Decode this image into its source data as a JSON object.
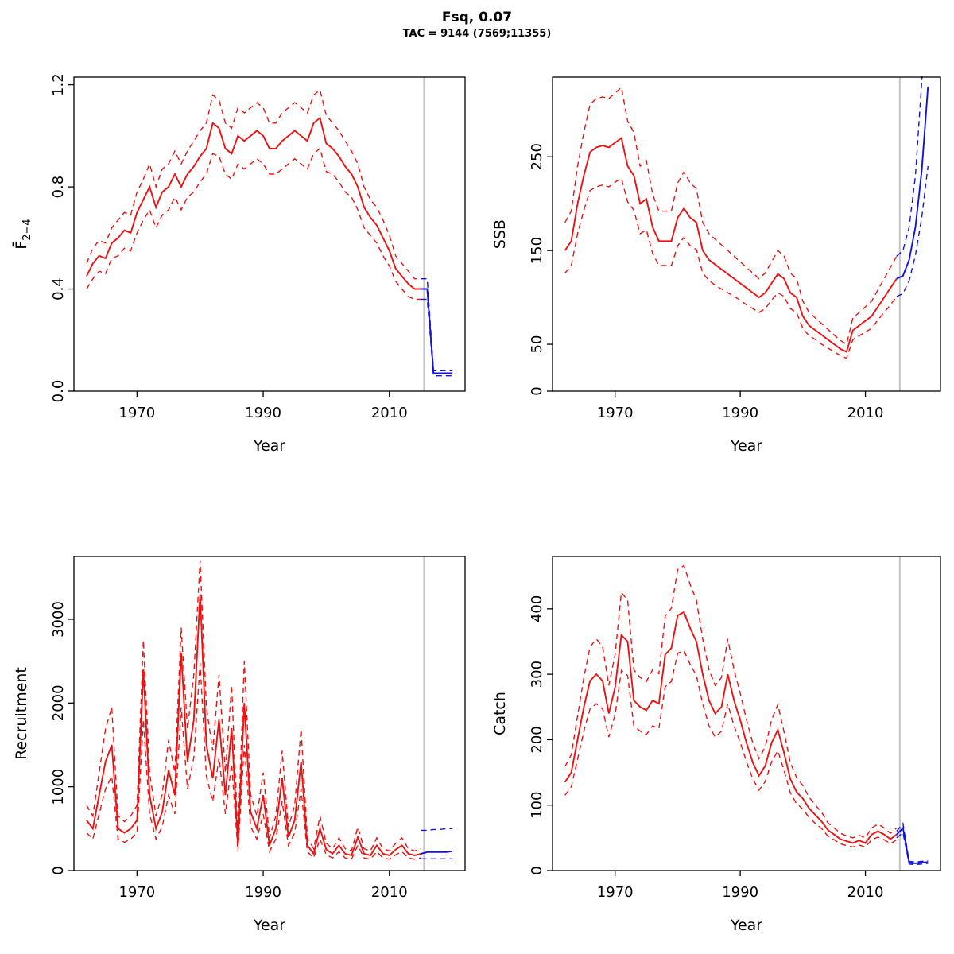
{
  "header": {
    "title": "Fsq, 0.07",
    "subtitle": "TAC = 9144 (7569;11355)"
  },
  "colors": {
    "red": "#ee1111",
    "blue": "#1212e0",
    "gray": "#c8c8c8",
    "axis": "#000000"
  },
  "chart_data": [
    {
      "id": "fbar",
      "type": "line",
      "ylabel_main": "F̄",
      "ylabel_sub": "2−4",
      "xlabel": "Year",
      "xlim": [
        1960,
        2022
      ],
      "ylim": [
        0,
        1.23
      ],
      "xticks": [
        1970,
        1990,
        2010
      ],
      "yticks": [
        0,
        0.4,
        0.8,
        1.2
      ],
      "ytick_labels": [
        "0.0",
        "0.4",
        "0.8",
        "1.2"
      ],
      "vline": 2015.5,
      "series": [
        {
          "name": "hist-median",
          "color": "red",
          "dash": false,
          "x_start": 1962,
          "values": [
            0.45,
            0.5,
            0.53,
            0.52,
            0.58,
            0.6,
            0.63,
            0.62,
            0.7,
            0.75,
            0.8,
            0.72,
            0.78,
            0.8,
            0.85,
            0.8,
            0.85,
            0.88,
            0.92,
            0.95,
            1.05,
            1.03,
            0.95,
            0.93,
            1.0,
            0.98,
            1.0,
            1.02,
            1.0,
            0.95,
            0.95,
            0.98,
            1.0,
            1.02,
            1.0,
            0.98,
            1.05,
            1.07,
            0.97,
            0.95,
            0.92,
            0.88,
            0.85,
            0.8,
            0.72,
            0.68,
            0.65,
            0.6,
            0.55,
            0.48,
            0.45,
            0.42,
            0.4,
            0.4
          ]
        },
        {
          "name": "hist-upper",
          "color": "red",
          "dash": true,
          "x_start": 1962,
          "values": [
            0.5,
            0.56,
            0.59,
            0.58,
            0.64,
            0.67,
            0.7,
            0.69,
            0.78,
            0.83,
            0.89,
            0.8,
            0.87,
            0.89,
            0.94,
            0.89,
            0.94,
            0.98,
            1.02,
            1.05,
            1.16,
            1.14,
            1.05,
            1.03,
            1.11,
            1.09,
            1.11,
            1.13,
            1.11,
            1.05,
            1.05,
            1.09,
            1.11,
            1.13,
            1.11,
            1.09,
            1.16,
            1.18,
            1.08,
            1.05,
            1.02,
            0.98,
            0.94,
            0.89,
            0.8,
            0.75,
            0.72,
            0.67,
            0.61,
            0.53,
            0.5,
            0.47,
            0.44,
            0.44
          ]
        },
        {
          "name": "hist-lower",
          "color": "red",
          "dash": true,
          "x_start": 1962,
          "values": [
            0.4,
            0.44,
            0.47,
            0.46,
            0.52,
            0.53,
            0.56,
            0.55,
            0.62,
            0.67,
            0.71,
            0.64,
            0.69,
            0.71,
            0.76,
            0.71,
            0.76,
            0.78,
            0.82,
            0.85,
            0.93,
            0.92,
            0.85,
            0.83,
            0.89,
            0.87,
            0.89,
            0.91,
            0.89,
            0.85,
            0.85,
            0.87,
            0.89,
            0.91,
            0.89,
            0.87,
            0.93,
            0.95,
            0.86,
            0.85,
            0.82,
            0.78,
            0.76,
            0.71,
            0.64,
            0.61,
            0.58,
            0.53,
            0.49,
            0.43,
            0.4,
            0.37,
            0.36,
            0.36
          ]
        },
        {
          "name": "forecast-median",
          "color": "blue",
          "dash": false,
          "x_start": 2015,
          "values": [
            0.4,
            0.4,
            0.07,
            0.07,
            0.07,
            0.07
          ]
        },
        {
          "name": "forecast-upper",
          "color": "blue",
          "dash": true,
          "x_start": 2015,
          "values": [
            0.44,
            0.44,
            0.08,
            0.08,
            0.08,
            0.08
          ]
        },
        {
          "name": "forecast-lower",
          "color": "blue",
          "dash": true,
          "x_start": 2015,
          "values": [
            0.36,
            0.36,
            0.06,
            0.06,
            0.06,
            0.06
          ]
        }
      ]
    },
    {
      "id": "ssb",
      "type": "line",
      "ylabel": "SSB",
      "xlabel": "Year",
      "xlim": [
        1960,
        2022
      ],
      "ylim": [
        0,
        335
      ],
      "xticks": [
        1970,
        1990,
        2010
      ],
      "yticks": [
        0,
        50,
        150,
        250
      ],
      "ytick_labels": [
        "0",
        "50",
        "150",
        "250"
      ],
      "vline": 2015.5,
      "series": [
        {
          "name": "hist-median",
          "color": "red",
          "dash": false,
          "x_start": 1962,
          "values": [
            150,
            160,
            200,
            230,
            255,
            260,
            262,
            260,
            265,
            270,
            240,
            230,
            200,
            205,
            175,
            160,
            160,
            160,
            185,
            195,
            185,
            180,
            150,
            140,
            135,
            130,
            125,
            120,
            115,
            110,
            105,
            100,
            105,
            115,
            125,
            120,
            105,
            100,
            80,
            70,
            65,
            60,
            55,
            50,
            45,
            42,
            65,
            70,
            75,
            80,
            90,
            100,
            110,
            120
          ]
        },
        {
          "name": "hist-upper",
          "color": "red",
          "dash": true,
          "x_start": 1962,
          "values": [
            180,
            192,
            240,
            276,
            306,
            312,
            314,
            312,
            318,
            324,
            288,
            276,
            240,
            246,
            210,
            192,
            192,
            192,
            222,
            234,
            222,
            216,
            180,
            168,
            162,
            156,
            150,
            144,
            138,
            132,
            126,
            120,
            126,
            138,
            150,
            144,
            126,
            120,
            96,
            84,
            78,
            72,
            66,
            60,
            54,
            50,
            78,
            84,
            90,
            96,
            108,
            120,
            132,
            144
          ]
        },
        {
          "name": "hist-lower",
          "color": "red",
          "dash": true,
          "x_start": 1962,
          "values": [
            126,
            134,
            168,
            193,
            214,
            218,
            220,
            218,
            223,
            227,
            202,
            193,
            168,
            172,
            147,
            134,
            134,
            134,
            155,
            164,
            155,
            151,
            126,
            118,
            113,
            109,
            105,
            101,
            97,
            92,
            88,
            84,
            88,
            97,
            105,
            101,
            88,
            84,
            67,
            59,
            55,
            50,
            46,
            42,
            38,
            35,
            55,
            59,
            63,
            67,
            76,
            84,
            92,
            101
          ]
        },
        {
          "name": "forecast-median",
          "color": "blue",
          "dash": false,
          "x_start": 2015,
          "values": [
            120,
            123,
            140,
            175,
            235,
            325
          ]
        },
        {
          "name": "forecast-upper",
          "color": "blue",
          "dash": true,
          "x_start": 2015,
          "values": [
            144,
            150,
            175,
            230,
            330,
            420
          ]
        },
        {
          "name": "forecast-lower",
          "color": "blue",
          "dash": true,
          "x_start": 2015,
          "values": [
            101,
            104,
            118,
            145,
            185,
            240
          ]
        }
      ]
    },
    {
      "id": "recruitment",
      "type": "line",
      "ylabel": "Recruitment",
      "xlabel": "Year",
      "xlim": [
        1960,
        2022
      ],
      "ylim": [
        0,
        3750
      ],
      "xticks": [
        1970,
        1990,
        2010
      ],
      "yticks": [
        0,
        1000,
        2000,
        3000
      ],
      "ytick_labels": [
        "0",
        "1000",
        "2000",
        "3000"
      ],
      "vline": 2015.5,
      "series": [
        {
          "name": "hist-median",
          "color": "red",
          "dash": false,
          "x_start": 1962,
          "values": [
            600,
            500,
            900,
            1300,
            1500,
            500,
            450,
            500,
            600,
            2400,
            900,
            500,
            700,
            1200,
            900,
            2600,
            1300,
            1800,
            3300,
            1500,
            1100,
            1800,
            900,
            1700,
            300,
            2000,
            700,
            500,
            900,
            300,
            500,
            1100,
            400,
            600,
            1300,
            300,
            200,
            500,
            250,
            200,
            300,
            200,
            180,
            400,
            200,
            180,
            300,
            200,
            180,
            250,
            300,
            200,
            180,
            200
          ]
        },
        {
          "name": "hist-upper",
          "color": "red",
          "dash": true,
          "x_start": 1962,
          "values": [
            780,
            650,
            1170,
            1690,
            1950,
            650,
            585,
            650,
            780,
            2750,
            1170,
            650,
            910,
            1560,
            1170,
            2900,
            1690,
            2340,
            3700,
            1950,
            1430,
            2340,
            1170,
            2210,
            390,
            2500,
            910,
            650,
            1170,
            390,
            650,
            1430,
            520,
            780,
            1690,
            390,
            260,
            650,
            325,
            260,
            390,
            260,
            234,
            520,
            260,
            234,
            390,
            260,
            234,
            325,
            390,
            260,
            234,
            260
          ]
        },
        {
          "name": "hist-lower",
          "color": "red",
          "dash": true,
          "x_start": 1962,
          "values": [
            450,
            375,
            675,
            975,
            1125,
            375,
            338,
            375,
            450,
            1800,
            675,
            375,
            525,
            900,
            675,
            1950,
            975,
            1350,
            2475,
            1125,
            825,
            1350,
            675,
            1275,
            225,
            1500,
            525,
            375,
            675,
            225,
            375,
            825,
            300,
            450,
            975,
            225,
            150,
            375,
            188,
            150,
            225,
            150,
            135,
            300,
            150,
            135,
            225,
            150,
            135,
            188,
            225,
            150,
            135,
            150
          ]
        },
        {
          "name": "forecast-median",
          "color": "blue",
          "dash": false,
          "x_start": 2015,
          "values": [
            200,
            220,
            220,
            220,
            220,
            230
          ]
        },
        {
          "name": "forecast-upper",
          "color": "blue",
          "dash": true,
          "x_start": 2015,
          "values": [
            480,
            480,
            490,
            490,
            500,
            500
          ]
        },
        {
          "name": "forecast-lower",
          "color": "blue",
          "dash": true,
          "x_start": 2015,
          "values": [
            140,
            140,
            140,
            140,
            140,
            140
          ]
        }
      ]
    },
    {
      "id": "catch",
      "type": "line",
      "ylabel": "Catch",
      "xlabel": "Year",
      "xlim": [
        1960,
        2022
      ],
      "ylim": [
        0,
        480
      ],
      "xticks": [
        1970,
        1990,
        2010
      ],
      "yticks": [
        0,
        100,
        200,
        300,
        400
      ],
      "ytick_labels": [
        "0",
        "100",
        "200",
        "300",
        "400"
      ],
      "vline": 2015.5,
      "series": [
        {
          "name": "hist-median",
          "color": "red",
          "dash": false,
          "x_start": 1962,
          "values": [
            135,
            150,
            200,
            250,
            290,
            300,
            290,
            240,
            280,
            360,
            350,
            260,
            250,
            245,
            260,
            255,
            330,
            340,
            390,
            395,
            370,
            350,
            300,
            260,
            240,
            250,
            300,
            260,
            230,
            195,
            165,
            145,
            160,
            195,
            215,
            180,
            140,
            120,
            110,
            95,
            85,
            75,
            62,
            55,
            48,
            45,
            42,
            46,
            42,
            55,
            60,
            55,
            48,
            55
          ]
        },
        {
          "name": "hist-upper",
          "color": "red",
          "dash": true,
          "x_start": 1962,
          "values": [
            159,
            177,
            236,
            295,
            342,
            354,
            342,
            283,
            330,
            425,
            413,
            307,
            295,
            289,
            307,
            301,
            389,
            401,
            460,
            466,
            437,
            413,
            354,
            307,
            283,
            295,
            354,
            307,
            271,
            230,
            195,
            171,
            189,
            230,
            254,
            212,
            165,
            142,
            130,
            112,
            100,
            89,
            73,
            65,
            57,
            53,
            50,
            54,
            50,
            65,
            71,
            65,
            57,
            65
          ]
        },
        {
          "name": "hist-lower",
          "color": "red",
          "dash": true,
          "x_start": 1962,
          "values": [
            115,
            128,
            170,
            213,
            247,
            255,
            247,
            204,
            238,
            306,
            298,
            221,
            213,
            208,
            221,
            217,
            281,
            289,
            332,
            336,
            315,
            298,
            255,
            221,
            204,
            213,
            255,
            221,
            196,
            166,
            140,
            123,
            136,
            166,
            183,
            153,
            119,
            102,
            94,
            81,
            72,
            64,
            53,
            47,
            41,
            38,
            36,
            39,
            36,
            47,
            51,
            47,
            41,
            47
          ]
        },
        {
          "name": "forecast-median",
          "color": "blue",
          "dash": false,
          "x_start": 2015,
          "values": [
            55,
            65,
            12,
            11,
            12,
            13
          ]
        },
        {
          "name": "forecast-upper",
          "color": "blue",
          "dash": true,
          "x_start": 2015,
          "values": [
            60,
            72,
            14,
            13,
            14,
            15
          ]
        },
        {
          "name": "forecast-lower",
          "color": "blue",
          "dash": true,
          "x_start": 2015,
          "values": [
            50,
            58,
            10,
            9,
            10,
            11
          ]
        }
      ]
    }
  ]
}
